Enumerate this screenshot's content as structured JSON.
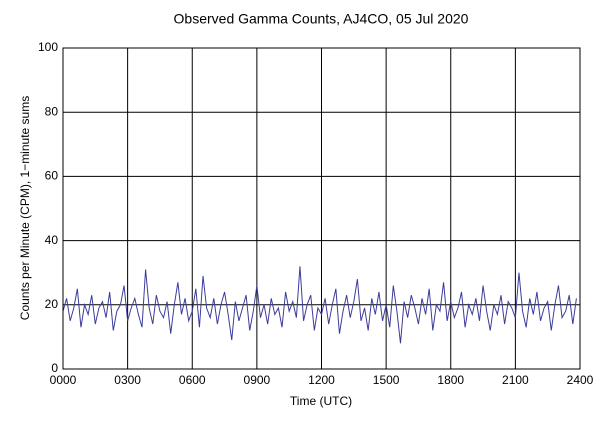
{
  "chart_data": {
    "type": "line",
    "title": "Observed Gamma Counts, AJ4CO, 05 Jul 2020",
    "xlabel": "Time (UTC)",
    "ylabel": "Counts per Minute (CPM), 1−minute sums",
    "x": [
      0,
      10,
      20,
      30,
      40,
      50,
      60,
      70,
      80,
      90,
      100,
      110,
      120,
      130,
      140,
      150,
      160,
      170,
      180,
      190,
      200,
      210,
      220,
      230,
      240,
      250,
      260,
      270,
      280,
      290,
      300,
      310,
      320,
      330,
      340,
      350,
      360,
      370,
      380,
      390,
      400,
      410,
      420,
      430,
      440,
      450,
      460,
      470,
      480,
      490,
      500,
      510,
      520,
      530,
      540,
      550,
      560,
      570,
      580,
      590,
      600,
      610,
      620,
      630,
      640,
      650,
      660,
      670,
      680,
      690,
      700,
      710,
      720,
      730,
      740,
      750,
      760,
      770,
      780,
      790,
      800,
      810,
      820,
      830,
      840,
      850,
      860,
      870,
      880,
      890,
      900,
      910,
      920,
      930,
      940,
      950,
      960,
      970,
      980,
      990,
      1000,
      1010,
      1020,
      1030,
      1040,
      1050,
      1060,
      1070,
      1080,
      1090,
      1100,
      1110,
      1120,
      1130,
      1140,
      1150,
      1160,
      1170,
      1180,
      1190,
      1200,
      1210,
      1220,
      1230,
      1240,
      1250,
      1260,
      1270,
      1280,
      1290,
      1300,
      1310,
      1320,
      1330,
      1340,
      1350,
      1360,
      1370,
      1380,
      1390,
      1400,
      1410,
      1420,
      1430
    ],
    "series": [
      {
        "color": "#3c3c9c",
        "values": [
          18,
          22,
          15,
          19,
          25,
          13,
          20,
          17,
          23,
          14,
          19,
          21,
          16,
          24,
          12,
          18,
          20,
          26,
          15,
          19,
          22,
          17,
          13,
          31,
          19,
          14,
          23,
          18,
          16,
          21,
          11,
          20,
          27,
          17,
          22,
          15,
          18,
          25,
          13,
          29,
          19,
          16,
          22,
          14,
          20,
          24,
          17,
          9,
          21,
          15,
          19,
          23,
          12,
          18,
          26,
          16,
          20,
          14,
          22,
          17,
          19,
          13,
          24,
          18,
          21,
          16,
          32,
          15,
          20,
          23,
          12,
          19,
          17,
          22,
          14,
          20,
          25,
          11,
          18,
          23,
          16,
          21,
          28,
          15,
          19,
          12,
          22,
          17,
          24,
          15,
          20,
          13,
          26,
          18,
          8,
          21,
          16,
          23,
          19,
          14,
          22,
          17,
          25,
          12,
          20,
          18,
          27,
          15,
          21,
          16,
          19,
          24,
          13,
          20,
          17,
          22,
          15,
          26,
          18,
          12,
          20,
          17,
          23,
          14,
          21,
          19,
          16,
          30,
          18,
          13,
          22,
          17,
          24,
          15,
          19,
          21,
          12,
          20,
          26,
          16,
          18,
          23,
          14,
          22
        ]
      }
    ],
    "xlim": [
      0,
      1440
    ],
    "xticks": [
      {
        "value": 0,
        "label": "0000"
      },
      {
        "value": 180,
        "label": "0300"
      },
      {
        "value": 360,
        "label": "0600"
      },
      {
        "value": 540,
        "label": "0900"
      },
      {
        "value": 720,
        "label": "1200"
      },
      {
        "value": 900,
        "label": "1500"
      },
      {
        "value": 1080,
        "label": "1800"
      },
      {
        "value": 1260,
        "label": "2100"
      },
      {
        "value": 1440,
        "label": "2400"
      }
    ],
    "ylim": [
      0,
      100
    ],
    "yticks": [
      0,
      20,
      40,
      60,
      80,
      100
    ],
    "grid": true
  }
}
